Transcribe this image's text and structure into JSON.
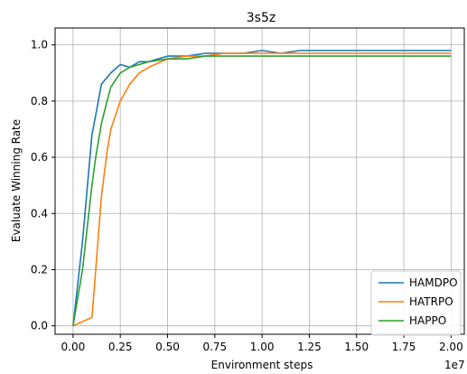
{
  "chart_data": {
    "type": "line",
    "title": "3s5z",
    "xlabel": "Environment steps",
    "ylabel": "Evaluate Winning Rate",
    "x_exponent_label": "1e7",
    "xlim": [
      -0.095,
      2.07
    ],
    "ylim": [
      -0.03,
      1.06
    ],
    "x_ticks": [
      0.0,
      0.25,
      0.5,
      0.75,
      1.0,
      1.25,
      1.5,
      1.75,
      2.0
    ],
    "x_tick_labels": [
      "0.00",
      "0.25",
      "0.50",
      "0.75",
      "1.00",
      "1.25",
      "1.50",
      "1.75",
      "2.00"
    ],
    "y_ticks": [
      0.0,
      0.2,
      0.4,
      0.6,
      0.8,
      1.0
    ],
    "y_tick_labels": [
      "0.0",
      "0.2",
      "0.4",
      "0.6",
      "0.8",
      "1.0"
    ],
    "grid": true,
    "legend_position": "lower-right",
    "series": [
      {
        "name": "HAMDPO",
        "color": "#1f77b4",
        "x": [
          0.0,
          0.05,
          0.1,
          0.12,
          0.15,
          0.2,
          0.25,
          0.3,
          0.35,
          0.4,
          0.5,
          0.6,
          0.7,
          0.8,
          0.9,
          1.0,
          1.1,
          1.2,
          1.3,
          1.4,
          1.5,
          1.6,
          1.7,
          1.8,
          1.9,
          2.0
        ],
        "y": [
          0.0,
          0.3,
          0.68,
          0.75,
          0.86,
          0.9,
          0.93,
          0.92,
          0.94,
          0.94,
          0.96,
          0.96,
          0.97,
          0.97,
          0.97,
          0.98,
          0.97,
          0.98,
          0.98,
          0.98,
          0.98,
          0.98,
          0.98,
          0.98,
          0.98,
          0.98
        ]
      },
      {
        "name": "HATRPO",
        "color": "#ff7f0e",
        "x": [
          0.0,
          0.1,
          0.12,
          0.15,
          0.18,
          0.2,
          0.25,
          0.3,
          0.35,
          0.4,
          0.5,
          0.6,
          0.7,
          0.8,
          0.9,
          1.0,
          1.1,
          1.2,
          1.3,
          1.4,
          1.5,
          1.6,
          1.7,
          1.8,
          1.9,
          2.0
        ],
        "y": [
          0.0,
          0.03,
          0.2,
          0.46,
          0.62,
          0.7,
          0.8,
          0.86,
          0.9,
          0.92,
          0.95,
          0.96,
          0.96,
          0.97,
          0.97,
          0.97,
          0.97,
          0.97,
          0.97,
          0.97,
          0.97,
          0.97,
          0.97,
          0.97,
          0.97,
          0.97
        ]
      },
      {
        "name": "HAPPO",
        "color": "#2ca02c",
        "x": [
          0.0,
          0.05,
          0.1,
          0.12,
          0.15,
          0.18,
          0.2,
          0.25,
          0.3,
          0.35,
          0.4,
          0.5,
          0.6,
          0.7,
          0.8,
          0.9,
          1.0,
          1.1,
          1.2,
          1.3,
          1.4,
          1.5,
          1.6,
          1.7,
          1.8,
          1.9,
          2.0
        ],
        "y": [
          0.0,
          0.2,
          0.5,
          0.6,
          0.72,
          0.8,
          0.85,
          0.9,
          0.92,
          0.93,
          0.94,
          0.95,
          0.95,
          0.96,
          0.96,
          0.96,
          0.96,
          0.96,
          0.96,
          0.96,
          0.96,
          0.96,
          0.96,
          0.96,
          0.96,
          0.96,
          0.96
        ]
      }
    ]
  }
}
